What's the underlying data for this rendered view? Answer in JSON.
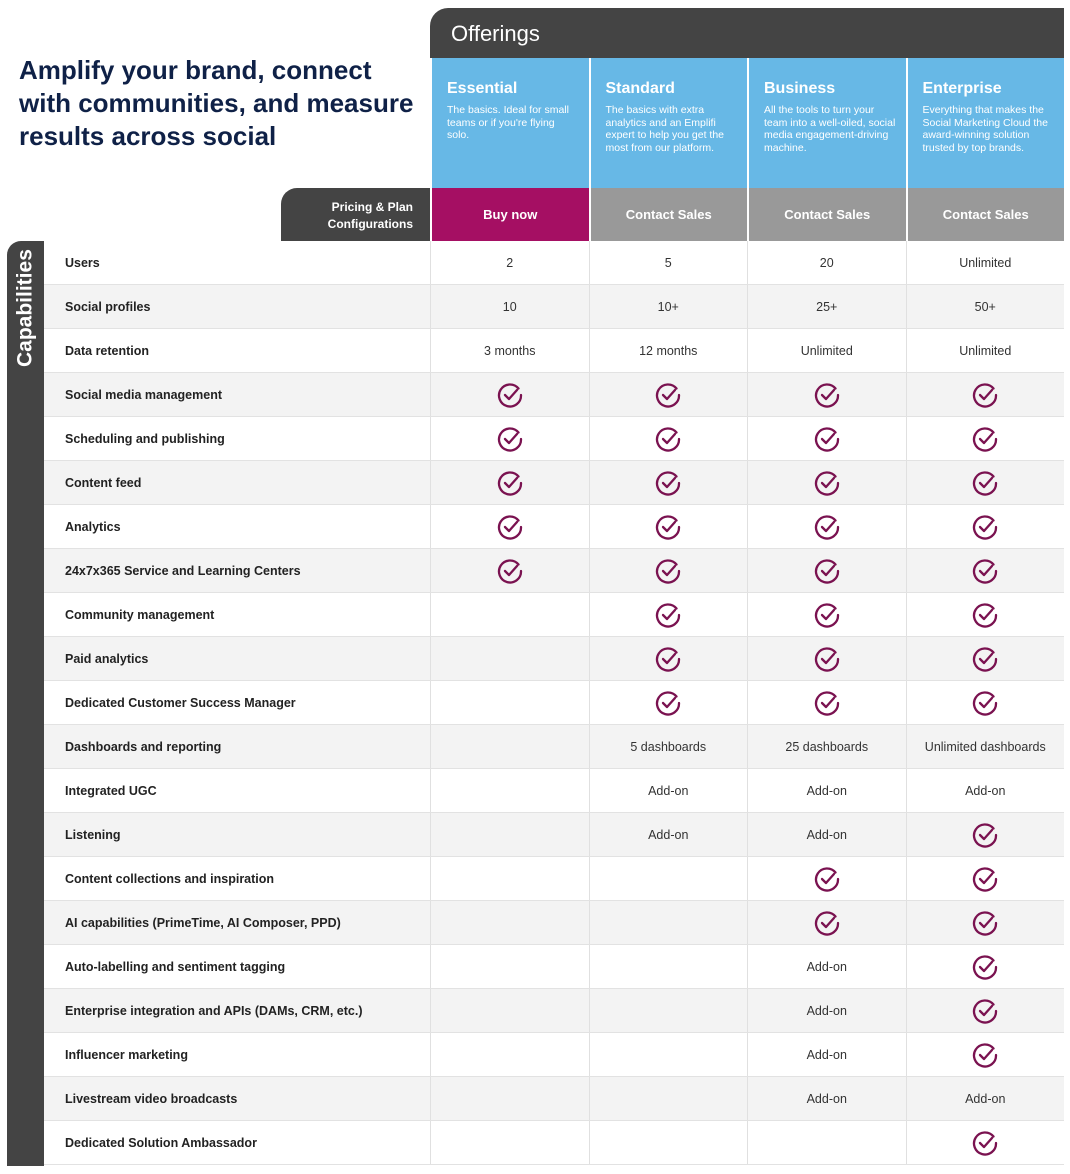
{
  "headline": "Amplify your brand, connect with communities, and measure results across social",
  "offerings_title": "Offerings",
  "pricing_tab": "Pricing & Plan Configurations",
  "capabilities_label": "Capabilities",
  "colors": {
    "dark": "#444444",
    "plan_blue": "#67b8e6",
    "buy": "#a50f63",
    "contact": "#999999",
    "check": "#7a1250",
    "headline": "#0f2147"
  },
  "plans": [
    {
      "name": "Essential",
      "desc": "The basics. Ideal for small teams or if you're flying solo.",
      "button": "Buy now"
    },
    {
      "name": "Standard",
      "desc": "The basics with extra analytics and an Emplifi expert to help you get the most from our platform.",
      "button": "Contact Sales"
    },
    {
      "name": "Business",
      "desc": "All the tools to turn your team into a well-oiled, social media engagement-driving machine.",
      "button": "Contact Sales"
    },
    {
      "name": "Enterprise",
      "desc": "Everything that makes the Social Marketing Cloud the award-winning solution trusted by top brands.",
      "button": "Contact Sales"
    }
  ],
  "rows": [
    {
      "label": "Users",
      "values": [
        "2",
        "5",
        "20",
        "Unlimited"
      ]
    },
    {
      "label": "Social profiles",
      "values": [
        "10",
        "10+",
        "25+",
        "50+"
      ]
    },
    {
      "label": "Data retention",
      "values": [
        "3 months",
        "12 months",
        "Unlimited",
        "Unlimited"
      ]
    },
    {
      "label": "Social media management",
      "values": [
        "check",
        "check",
        "check",
        "check"
      ]
    },
    {
      "label": "Scheduling and publishing",
      "values": [
        "check",
        "check",
        "check",
        "check"
      ]
    },
    {
      "label": "Content feed",
      "values": [
        "check",
        "check",
        "check",
        "check"
      ]
    },
    {
      "label": "Analytics",
      "values": [
        "check",
        "check",
        "check",
        "check"
      ]
    },
    {
      "label": "24x7x365 Service and Learning Centers",
      "values": [
        "check",
        "check",
        "check",
        "check"
      ]
    },
    {
      "label": "Community management",
      "values": [
        "",
        "check",
        "check",
        "check"
      ]
    },
    {
      "label": "Paid analytics",
      "values": [
        "",
        "check",
        "check",
        "check"
      ]
    },
    {
      "label": "Dedicated Customer Success Manager",
      "values": [
        "",
        "check",
        "check",
        "check"
      ]
    },
    {
      "label": "Dashboards and reporting",
      "values": [
        "",
        "5 dashboards",
        "25 dashboards",
        "Unlimited dashboards"
      ]
    },
    {
      "label": "Integrated UGC",
      "values": [
        "",
        "Add-on",
        "Add-on",
        "Add-on"
      ]
    },
    {
      "label": "Listening",
      "values": [
        "",
        "Add-on",
        "Add-on",
        "check"
      ]
    },
    {
      "label": "Content collections and inspiration",
      "values": [
        "",
        "",
        "check",
        "check"
      ]
    },
    {
      "label": "AI capabilities (PrimeTime, AI Composer, PPD)",
      "values": [
        "",
        "",
        "check",
        "check"
      ]
    },
    {
      "label": "Auto-labelling and sentiment tagging",
      "values": [
        "",
        "",
        "Add-on",
        "check"
      ]
    },
    {
      "label": "Enterprise integration and APIs (DAMs, CRM, etc.)",
      "values": [
        "",
        "",
        "Add-on",
        "check"
      ]
    },
    {
      "label": "Influencer marketing",
      "values": [
        "",
        "",
        "Add-on",
        "check"
      ]
    },
    {
      "label": "Livestream video broadcasts",
      "values": [
        "",
        "",
        "Add-on",
        "Add-on"
      ]
    },
    {
      "label": "Dedicated Solution Ambassador",
      "values": [
        "",
        "",
        "",
        "check"
      ]
    }
  ]
}
